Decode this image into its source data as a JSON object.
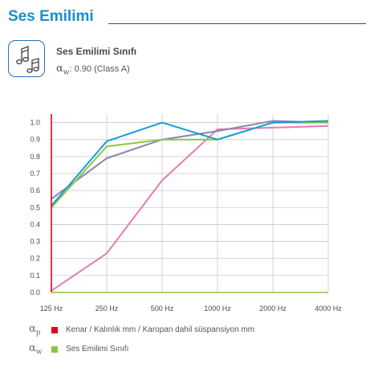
{
  "header": {
    "title": "Ses Emilimi"
  },
  "summary": {
    "icon": "music-notes-icon",
    "class_name": "Ses Emilimi Sınıfı",
    "value_symbol": "α",
    "value_subscript": "w",
    "value_text": ": 0.90 (Class A)"
  },
  "chart_data": {
    "type": "line",
    "categories": [
      "125 Hz",
      "250 Hz",
      "500 Hz",
      "1000 Hz",
      "2000 Hz",
      "4000 Hz"
    ],
    "y_ticks": [
      "0.0",
      "0.1",
      "0.2",
      "0.3",
      "0.4",
      "0.5",
      "0.6",
      "0.7",
      "0.8",
      "0.9",
      "1.0"
    ],
    "ylim": [
      0,
      1.05
    ],
    "grid": true,
    "series": [
      {
        "color": "#e87ab8",
        "values": [
          0.01,
          0.23,
          0.66,
          0.96,
          0.97,
          0.98
        ]
      },
      {
        "color": "#8a86ad",
        "values": [
          0.55,
          0.79,
          0.9,
          0.95,
          1.01,
          1.0
        ]
      },
      {
        "color": "#8cc63f",
        "values": [
          0.5,
          0.86,
          0.9,
          0.9,
          1.0,
          1.0
        ]
      },
      {
        "color": "#1a9ad6",
        "values": [
          0.51,
          0.89,
          1.0,
          0.9,
          1.0,
          1.01
        ]
      }
    ]
  },
  "legend": [
    {
      "symbol": "α",
      "subscript": "p",
      "color": "#e2001a",
      "text": "Kenar / Kalınlık mm / Karopan dahil süspansiyon mm"
    },
    {
      "symbol": "α",
      "subscript": "w",
      "color": "#8cc63f",
      "text": "Ses Emilimi Sınıfı"
    }
  ]
}
